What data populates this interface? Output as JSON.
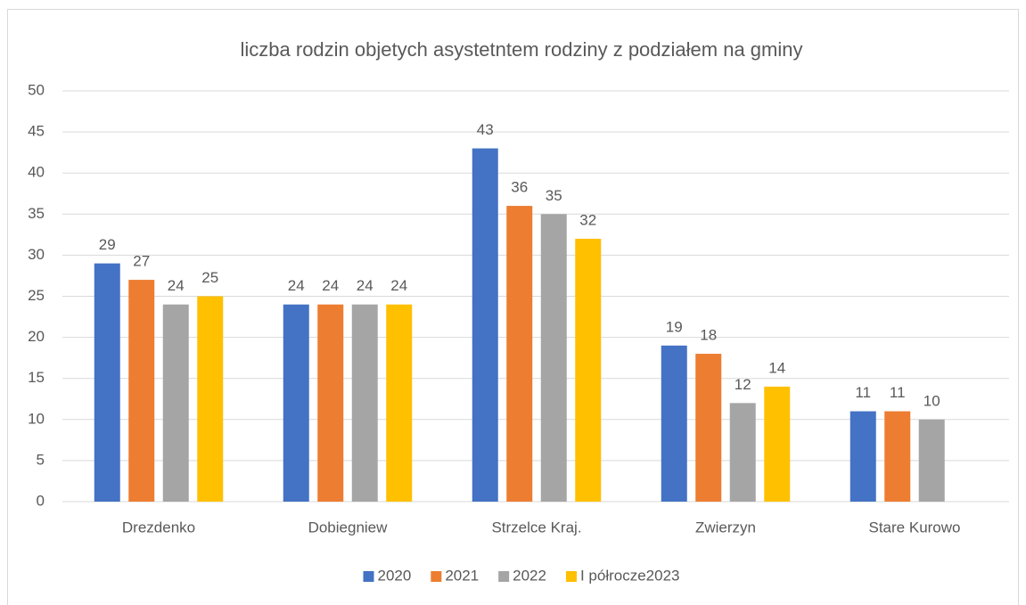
{
  "chart_data": {
    "type": "bar",
    "title": "liczba rodzin objetych asystetntem rodziny z podziałem na gminy",
    "categories": [
      "Drezdenko",
      "Dobiegniew",
      "Strzelce Kraj.",
      "Zwierzyn",
      "Stare Kurowo"
    ],
    "series": [
      {
        "name": "2020",
        "color": "#4472c4",
        "values": [
          29,
          24,
          43,
          19,
          11
        ]
      },
      {
        "name": "2021",
        "color": "#ed7d31",
        "values": [
          27,
          24,
          36,
          18,
          11
        ]
      },
      {
        "name": "2022",
        "color": "#a5a5a5",
        "values": [
          24,
          24,
          35,
          12,
          10
        ]
      },
      {
        "name": "I półrocze2023",
        "color": "#ffc000",
        "values": [
          25,
          24,
          32,
          14,
          null
        ]
      }
    ],
    "ylim": [
      0,
      50
    ],
    "yticks": [
      0,
      5,
      10,
      15,
      20,
      25,
      30,
      35,
      40,
      45,
      50
    ],
    "grid": true,
    "legend": "bottom"
  }
}
